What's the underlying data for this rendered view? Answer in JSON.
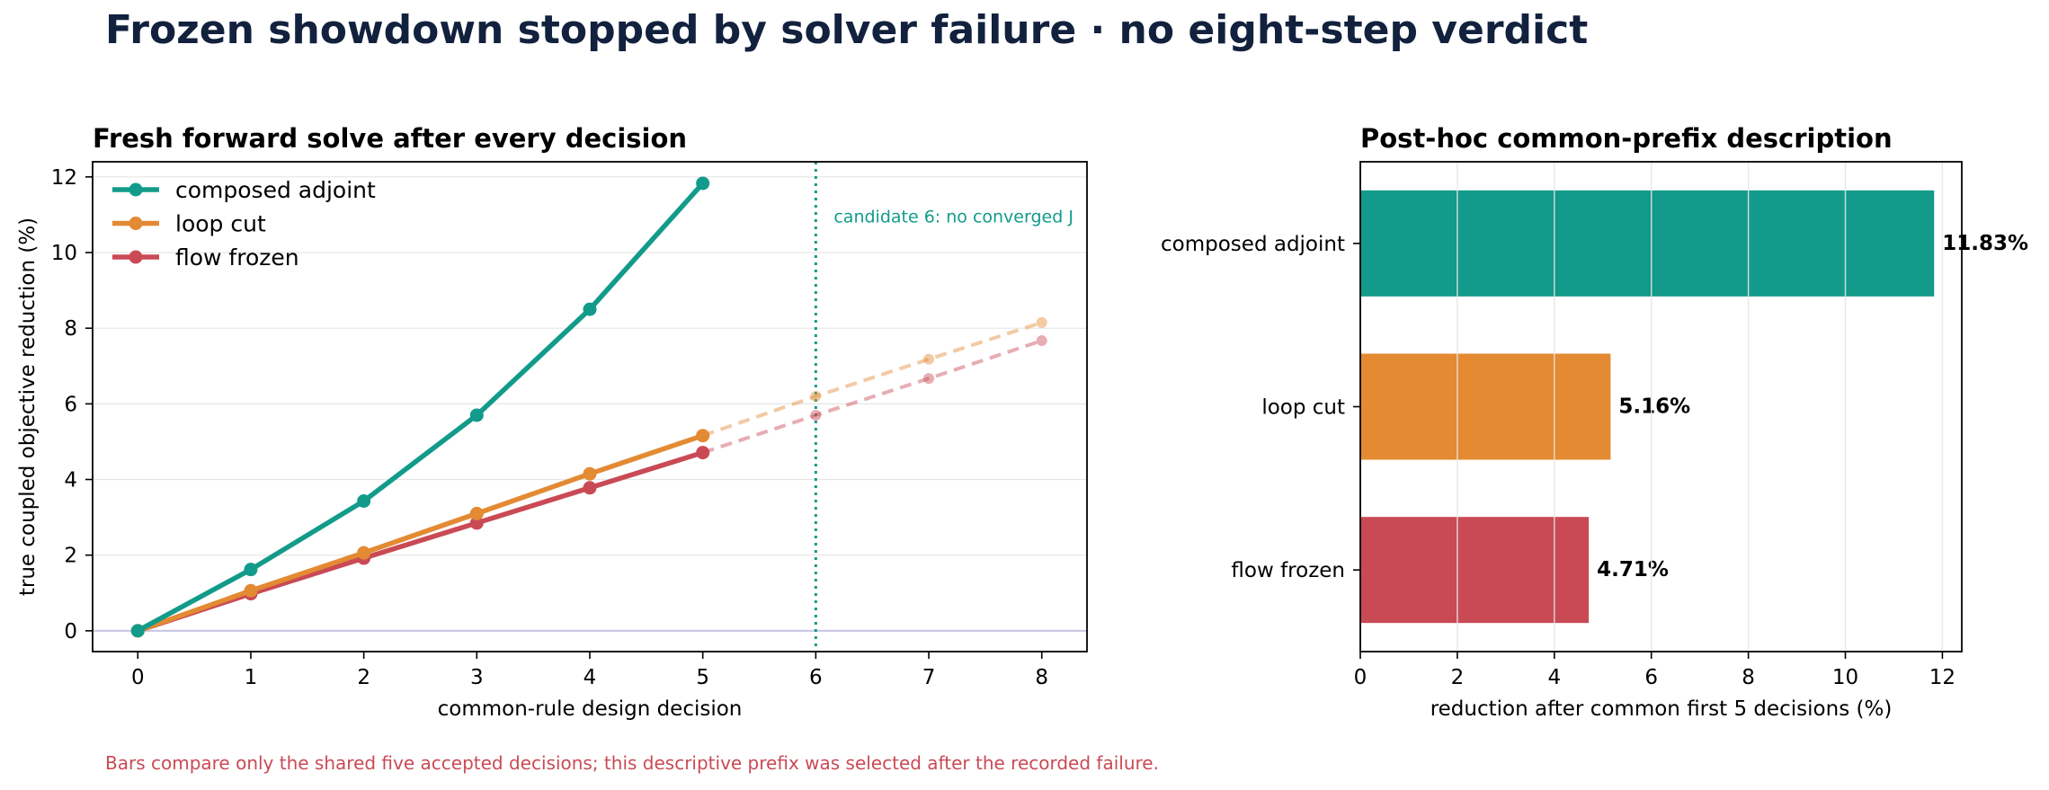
{
  "title": "Frozen showdown stopped by solver failure · no eight-step verdict",
  "footnote": "Bars compare only the shared five accepted decisions; this descriptive prefix was selected after the recorded failure.",
  "colors": {
    "composed_adjoint": "#129b8a",
    "loop_cut": "#e38a33",
    "flow_frozen": "#c94a55",
    "title": "#12213d",
    "footnote": "#c94a55",
    "zero_line": "#c9c4e6",
    "grid": "#e6e6e6"
  },
  "chart_data": [
    {
      "type": "line",
      "title": "Fresh forward solve after every decision",
      "xlabel": "common-rule design decision",
      "ylabel": "true coupled objective reduction (%)",
      "xlim": [
        -0.4,
        8.4
      ],
      "ylim": [
        -0.55,
        12.4
      ],
      "x_ticks": [
        0,
        1,
        2,
        3,
        4,
        5,
        6,
        7,
        8
      ],
      "y_ticks": [
        0,
        2,
        4,
        6,
        8,
        10,
        12
      ],
      "grid": "horizontal",
      "legend_position": "top-left",
      "zero_line": 0,
      "series": [
        {
          "name": "composed adjoint",
          "x": [
            0,
            1,
            2,
            3,
            4,
            5
          ],
          "y": [
            0,
            1.62,
            3.43,
            5.7,
            8.5,
            11.83
          ],
          "color_key": "composed_adjoint"
        },
        {
          "name": "loop cut",
          "x": [
            0,
            1,
            2,
            3,
            4,
            5
          ],
          "y": [
            0,
            1.06,
            2.06,
            3.1,
            4.15,
            5.16
          ],
          "color_key": "loop_cut",
          "projection": {
            "x": [
              5,
              6,
              7,
              8
            ],
            "y": [
              5.16,
              6.2,
              7.18,
              8.15
            ],
            "style": "dashed"
          }
        },
        {
          "name": "flow frozen",
          "x": [
            0,
            1,
            2,
            3,
            4,
            5
          ],
          "y": [
            0,
            0.98,
            1.92,
            2.85,
            3.78,
            4.71
          ],
          "color_key": "flow_frozen",
          "projection": {
            "x": [
              5,
              6,
              7,
              8
            ],
            "y": [
              4.71,
              5.7,
              6.67,
              7.67
            ],
            "style": "dashed"
          }
        }
      ],
      "annotations": [
        {
          "type": "vline",
          "x": 6,
          "style": "dotted",
          "color_key": "composed_adjoint",
          "label": "candidate 6: no converged J"
        }
      ]
    },
    {
      "type": "bar",
      "orientation": "horizontal",
      "title": "Post-hoc common-prefix description",
      "xlabel": "reduction after common first 5 decisions (%)",
      "xlim": [
        0,
        12.4
      ],
      "x_ticks": [
        0,
        2,
        4,
        6,
        8,
        10,
        12
      ],
      "grid": "vertical",
      "categories": [
        "composed adjoint",
        "loop cut",
        "flow frozen"
      ],
      "values": [
        11.83,
        5.16,
        4.71
      ],
      "value_labels": [
        "11.83%",
        "5.16%",
        "4.71%"
      ],
      "color_keys": [
        "composed_adjoint",
        "loop_cut",
        "flow_frozen"
      ]
    }
  ]
}
